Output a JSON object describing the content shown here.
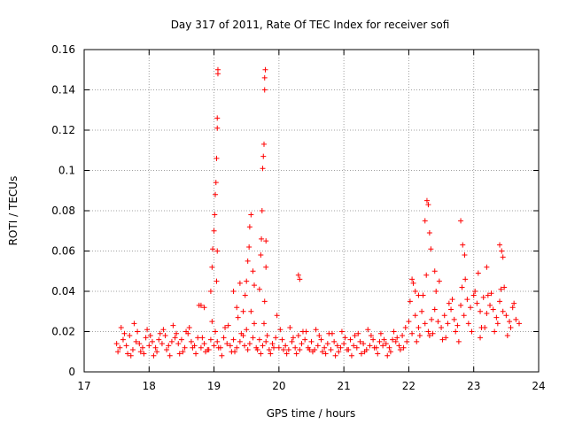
{
  "chart_data": {
    "type": "scatter",
    "title": "Day 317 of 2011, Rate Of TEC Index for receiver sofi",
    "xlabel": "GPS time / hours",
    "ylabel": "ROTI / TECUs",
    "xlim": [
      17,
      24
    ],
    "ylim": [
      0,
      0.16
    ],
    "xticks": [
      17,
      18,
      19,
      20,
      21,
      22,
      23,
      24
    ],
    "xtick_labels": [
      "17",
      "18",
      "19",
      "20",
      "21",
      "22",
      "23",
      "24"
    ],
    "yticks": [
      0,
      0.02,
      0.04,
      0.06,
      0.08,
      0.1,
      0.12,
      0.14,
      0.16
    ],
    "ytick_labels": [
      "0",
      "0.02",
      "0.04",
      "0.06",
      "0.08",
      "0.1",
      "0.12",
      "0.14",
      "0.16"
    ],
    "grid": true,
    "marker": "+",
    "color": "#ff0000",
    "series": [
      {
        "name": "ROTI",
        "x": [
          17.5,
          17.55,
          17.6,
          17.65,
          17.7,
          17.75,
          17.8,
          17.85,
          17.9,
          17.95,
          18.0,
          18.05,
          18.1,
          18.15,
          18.2,
          18.25,
          18.3,
          18.35,
          18.4,
          18.45,
          18.5,
          18.55,
          18.6,
          18.65,
          18.7,
          18.75,
          18.8,
          18.85,
          18.9,
          18.95,
          19.0,
          19.05,
          19.1,
          19.15,
          19.2,
          19.25,
          19.3,
          19.35,
          19.4,
          19.45,
          19.5,
          19.55,
          19.6,
          19.65,
          19.7,
          19.75,
          19.8,
          19.85,
          19.9,
          19.95,
          20.0,
          20.05,
          20.1,
          20.15,
          20.2,
          20.25,
          20.3,
          20.35,
          20.4,
          20.45,
          20.5,
          20.55,
          20.6,
          20.65,
          20.7,
          20.75,
          20.8,
          20.85,
          20.9,
          20.95,
          21.0,
          21.05,
          21.1,
          21.15,
          21.2,
          21.25,
          21.3,
          21.35,
          21.4,
          21.45,
          21.5,
          21.55,
          21.6,
          21.65,
          21.7,
          21.75,
          21.8,
          21.85,
          21.9,
          21.95,
          22.0,
          22.05,
          22.1,
          22.15,
          22.2,
          22.25,
          22.3,
          22.35,
          22.4,
          22.45,
          22.5,
          22.55,
          22.6,
          22.65,
          22.7,
          22.75,
          22.8,
          22.85,
          22.9,
          22.95,
          23.0,
          23.05,
          23.1,
          23.15,
          23.2,
          23.25,
          23.3,
          23.35,
          23.4,
          23.45,
          23.5,
          23.55,
          23.6,
          23.65,
          23.7,
          17.52,
          17.62,
          17.72,
          17.82,
          17.92,
          18.02,
          18.12,
          18.22,
          18.32,
          18.42,
          18.52,
          18.62,
          18.72,
          18.82,
          18.92,
          19.02,
          19.12,
          19.22,
          19.32,
          19.42,
          19.52,
          19.62,
          19.72,
          19.82,
          19.92,
          20.02,
          20.12,
          20.22,
          20.32,
          20.42,
          20.52,
          20.62,
          20.72,
          20.82,
          20.92,
          21.02,
          21.12,
          21.22,
          21.32,
          21.42,
          21.52,
          21.62,
          21.72,
          21.82,
          21.92,
          22.02,
          22.12,
          22.22,
          22.32,
          22.42,
          22.52,
          22.62,
          22.72,
          22.82,
          22.92,
          23.02,
          23.12,
          23.22,
          23.32,
          23.42,
          23.52,
          23.62,
          17.57,
          17.67,
          17.77,
          17.87,
          17.97,
          18.07,
          18.17,
          18.27,
          18.37,
          18.47,
          18.57,
          18.67,
          18.77,
          18.87,
          18.97,
          19.07,
          19.17,
          19.27,
          19.37,
          19.47,
          19.57,
          19.67,
          19.77,
          19.87,
          19.97,
          20.07,
          20.17,
          20.27,
          20.37,
          20.47,
          20.57,
          20.67,
          20.77,
          20.87,
          20.97,
          21.07,
          21.17,
          21.27,
          21.37,
          21.47,
          21.57,
          21.67,
          21.77,
          21.87,
          21.97,
          22.07,
          22.17,
          22.27,
          22.37,
          22.47,
          22.57,
          22.67,
          22.77,
          22.87,
          22.97,
          23.07,
          23.17,
          23.27,
          23.37,
          23.47,
          23.57,
          18.95,
          18.97,
          18.98,
          19.0,
          19.01,
          19.02,
          19.03,
          19.04,
          19.05,
          19.05,
          19.06,
          19.06,
          19.05,
          19.04,
          19.7,
          19.72,
          19.73,
          19.74,
          19.75,
          19.76,
          19.77,
          19.78,
          19.78,
          19.79,
          19.8,
          19.8,
          19.78,
          19.48,
          19.5,
          19.52,
          19.54,
          19.55,
          19.57,
          19.6,
          19.62,
          19.3,
          19.35,
          19.4,
          19.45,
          22.25,
          22.28,
          22.3,
          22.32,
          22.34,
          22.4,
          22.05,
          22.1,
          22.15,
          22.8,
          22.83,
          22.86,
          23.4,
          23.43,
          23.45,
          23.2,
          23.1,
          20.3,
          20.32,
          18.8,
          18.85
        ],
        "y": [
          0.014,
          0.012,
          0.016,
          0.013,
          0.018,
          0.011,
          0.015,
          0.014,
          0.012,
          0.017,
          0.013,
          0.015,
          0.012,
          0.016,
          0.014,
          0.018,
          0.013,
          0.015,
          0.017,
          0.014,
          0.016,
          0.012,
          0.019,
          0.015,
          0.013,
          0.017,
          0.012,
          0.014,
          0.011,
          0.016,
          0.013,
          0.015,
          0.012,
          0.017,
          0.014,
          0.013,
          0.016,
          0.012,
          0.015,
          0.018,
          0.021,
          0.014,
          0.017,
          0.012,
          0.016,
          0.013,
          0.015,
          0.011,
          0.014,
          0.017,
          0.012,
          0.016,
          0.013,
          0.011,
          0.015,
          0.012,
          0.018,
          0.014,
          0.016,
          0.012,
          0.015,
          0.011,
          0.013,
          0.016,
          0.012,
          0.014,
          0.011,
          0.015,
          0.013,
          0.012,
          0.014,
          0.011,
          0.016,
          0.013,
          0.012,
          0.015,
          0.014,
          0.011,
          0.013,
          0.016,
          0.012,
          0.015,
          0.013,
          0.014,
          0.012,
          0.016,
          0.015,
          0.013,
          0.018,
          0.022,
          0.025,
          0.019,
          0.028,
          0.022,
          0.03,
          0.024,
          0.02,
          0.026,
          0.031,
          0.025,
          0.022,
          0.028,
          0.024,
          0.031,
          0.026,
          0.023,
          0.033,
          0.028,
          0.036,
          0.032,
          0.038,
          0.034,
          0.03,
          0.037,
          0.029,
          0.033,
          0.031,
          0.027,
          0.035,
          0.03,
          0.028,
          0.025,
          0.032,
          0.026,
          0.024,
          0.01,
          0.019,
          0.008,
          0.02,
          0.009,
          0.018,
          0.01,
          0.021,
          0.008,
          0.019,
          0.01,
          0.022,
          0.009,
          0.017,
          0.011,
          0.02,
          0.008,
          0.023,
          0.01,
          0.019,
          0.011,
          0.024,
          0.009,
          0.018,
          0.012,
          0.021,
          0.009,
          0.017,
          0.011,
          0.02,
          0.01,
          0.018,
          0.009,
          0.019,
          0.01,
          0.017,
          0.008,
          0.019,
          0.01,
          0.018,
          0.009,
          0.016,
          0.01,
          0.017,
          0.012,
          0.035,
          0.015,
          0.038,
          0.018,
          0.04,
          0.016,
          0.034,
          0.02,
          0.042,
          0.024,
          0.04,
          0.022,
          0.038,
          0.02,
          0.041,
          0.018,
          0.034,
          0.022,
          0.009,
          0.024,
          0.01,
          0.021,
          0.008,
          0.019,
          0.011,
          0.023,
          0.009,
          0.02,
          0.012,
          0.033,
          0.01,
          0.025,
          0.012,
          0.022,
          0.01,
          0.027,
          0.013,
          0.03,
          0.011,
          0.024,
          0.009,
          0.028,
          0.011,
          0.022,
          0.009,
          0.02,
          0.011,
          0.021,
          0.01,
          0.019,
          0.008,
          0.02,
          0.011,
          0.018,
          0.009,
          0.021,
          0.012,
          0.019,
          0.008,
          0.02,
          0.011,
          0.015,
          0.044,
          0.018,
          0.048,
          0.019,
          0.045,
          0.017,
          0.036,
          0.015,
          0.046,
          0.02,
          0.049,
          0.022,
          0.039,
          0.024,
          0.042,
          0.022,
          0.04,
          0.052,
          0.061,
          0.07,
          0.078,
          0.088,
          0.094,
          0.106,
          0.121,
          0.126,
          0.148,
          0.15,
          0.06,
          0.045,
          0.041,
          0.058,
          0.066,
          0.08,
          0.101,
          0.107,
          0.113,
          0.14,
          0.146,
          0.15,
          0.065,
          0.052,
          0.035,
          0.038,
          0.045,
          0.055,
          0.062,
          0.072,
          0.078,
          0.05,
          0.043,
          0.04,
          0.032,
          0.044,
          0.03,
          0.075,
          0.085,
          0.083,
          0.069,
          0.061,
          0.05,
          0.046,
          0.04,
          0.038,
          0.075,
          0.063,
          0.058,
          0.063,
          0.06,
          0.057,
          0.052,
          0.017,
          0.048,
          0.046,
          0.033,
          0.032
        ]
      }
    ]
  }
}
